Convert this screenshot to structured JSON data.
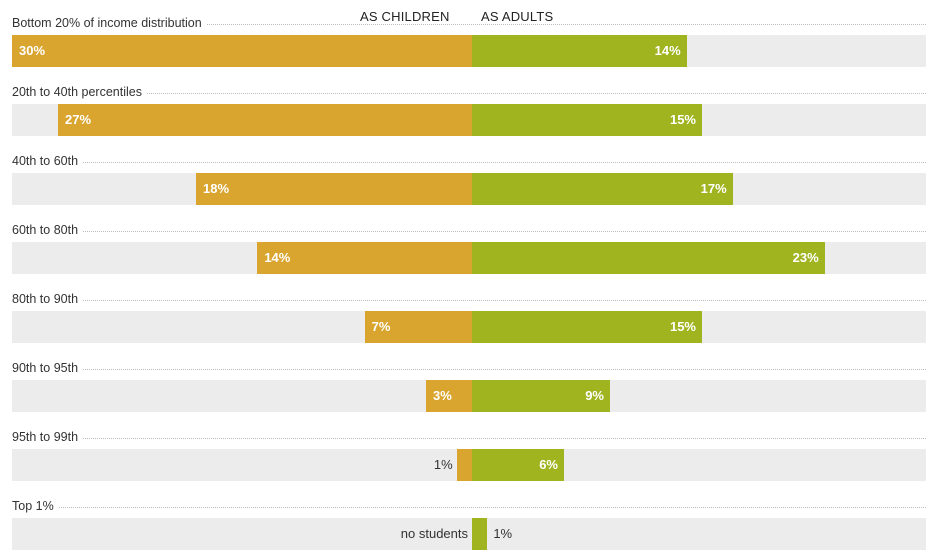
{
  "chart_data": {
    "type": "bar",
    "orientation": "horizontal-diverging",
    "left_header": "AS CHILDREN",
    "right_header": "AS ADULTS",
    "colors": {
      "children": "#d9a52e",
      "adults": "#9fb41f",
      "track": "#ececec"
    },
    "categories": [
      "Bottom 20% of income distribution",
      "20th to 40th percentiles",
      "40th to 60th",
      "60th to 80th",
      "80th to 90th",
      "90th to 95th",
      "95th to 99th",
      "Top 1%"
    ],
    "series": [
      {
        "name": "AS CHILDREN",
        "values": [
          30,
          27,
          18,
          14,
          7,
          3,
          1,
          0
        ],
        "labels": [
          "30%",
          "27%",
          "18%",
          "14%",
          "7%",
          "3%",
          "1%",
          "no students"
        ]
      },
      {
        "name": "AS ADULTS",
        "values": [
          14,
          15,
          17,
          23,
          15,
          9,
          6,
          1
        ],
        "labels": [
          "14%",
          "15%",
          "17%",
          "23%",
          "15%",
          "9%",
          "6%",
          "1%"
        ]
      }
    ],
    "xlim": [
      -30,
      30
    ]
  }
}
